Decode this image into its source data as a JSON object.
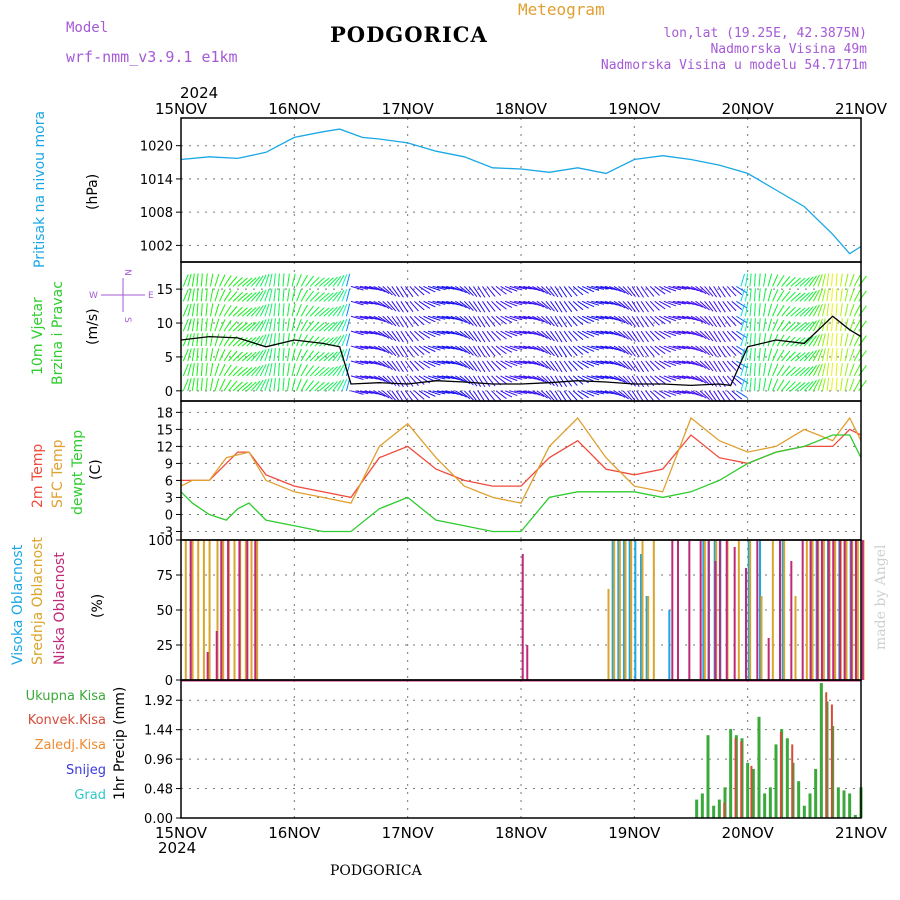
{
  "header": {
    "model_label": "Model",
    "model_name": "wrf-nmm_v3.9.1 e1km",
    "city": "PODGORICA",
    "meteogram": "Meteogram",
    "coords": "lon,lat (19.25E, 42.3875N)",
    "elevation": "Nadmorska Visina 49m",
    "model_elevation": "Nadmorska Visina u modelu 54.7171m"
  },
  "footer": {
    "city": "PODGORICA",
    "watermark": "made by Angel"
  },
  "time_axis": {
    "year": "2024",
    "ticks": [
      "15NOV",
      "16NOV",
      "17NOV",
      "18NOV",
      "19NOV",
      "20NOV",
      "21NOV"
    ]
  },
  "colors": {
    "pressure": "#1aa7e6",
    "wind_speed": "#000000",
    "t2m": "#ef4b3c",
    "tsfc": "#e0a030",
    "dewpoint": "#2fcc2f",
    "high_cloud": "#1aa7e6",
    "mid_cloud": "#d9a52a",
    "low_cloud": "#c0287a",
    "precip_total": "#3aa83a",
    "precip_conv": "#d64a3a",
    "precip_frozen": "#f08a30",
    "snow": "#3a3ae0",
    "graupel": "#2ec8c8",
    "label_purple": "#a55ad6",
    "axis": "#000000"
  },
  "panels": {
    "pressure": {
      "label_line1": "Pritisak na nivou mora",
      "unit": "(hPa)"
    },
    "wind": {
      "label_line1": "10m Vjetar",
      "label_line2": "Brzina i Pravac",
      "unit": "(m/s)",
      "compass": {
        "north": "N",
        "south": "S",
        "east": "E",
        "west": "W"
      }
    },
    "temp": {
      "label_t2m": "2m Temp",
      "label_tsfc": "SFC Temp",
      "label_dew": "dewpt Temp",
      "unit": "(C)"
    },
    "cloud": {
      "label_high": "Visoka Oblacnost",
      "label_mid": "Srednja Oblacnost",
      "label_low": "Niska Oblacnost",
      "unit": "(%)"
    },
    "precip": {
      "legend": [
        "Ukupna Kisa",
        "Konvek.Kisa",
        "Zaledj.Kisa",
        "Snijeg",
        "Grad"
      ],
      "unit": "1hr Precip (mm)"
    }
  },
  "chart_data": [
    {
      "type": "line",
      "title": "Pritisak na nivou mora",
      "ylabel": "(hPa)",
      "x_range_days": [
        0,
        6
      ],
      "ylim": [
        999,
        1025
      ],
      "yticks": [
        1002,
        1008,
        1014,
        1020
      ],
      "x": [
        0,
        0.25,
        0.5,
        0.75,
        1,
        1.25,
        1.4,
        1.6,
        1.75,
        2,
        2.25,
        2.5,
        2.75,
        3,
        3.25,
        3.5,
        3.75,
        4,
        4.25,
        4.5,
        4.75,
        5,
        5.25,
        5.5,
        5.75,
        5.9,
        6
      ],
      "values": [
        1017.5,
        1018.0,
        1017.7,
        1018.8,
        1021.5,
        1022.5,
        1023.0,
        1021.5,
        1021.2,
        1020.5,
        1019.0,
        1018.0,
        1016.0,
        1015.8,
        1015.2,
        1016.0,
        1015.0,
        1017.5,
        1018.2,
        1017.5,
        1016.5,
        1015.0,
        1012.0,
        1009.0,
        1004.0,
        1000.5,
        1001.8
      ]
    },
    {
      "type": "line",
      "title": "10m Vjetar Brzina i Pravac",
      "ylabel": "(m/s)",
      "x_range_days": [
        0,
        6
      ],
      "ylim": [
        -1.5,
        19
      ],
      "yticks": [
        0,
        5,
        10,
        15
      ],
      "x": [
        0,
        0.25,
        0.5,
        0.75,
        1,
        1.25,
        1.4,
        1.5,
        1.75,
        2,
        2.25,
        2.5,
        2.75,
        3,
        3.25,
        3.5,
        3.75,
        4,
        4.25,
        4.5,
        4.75,
        4.85,
        5,
        5.25,
        5.5,
        5.75,
        5.9,
        6
      ],
      "values": [
        7.5,
        8.0,
        7.8,
        6.5,
        7.5,
        7.0,
        6.5,
        1.0,
        1.2,
        1.0,
        1.5,
        1.3,
        1.0,
        1.0,
        1.2,
        1.5,
        1.3,
        1.0,
        1.0,
        0.8,
        1.0,
        0.8,
        6.5,
        7.5,
        7.0,
        11.0,
        9.0,
        8.0
      ]
    },
    {
      "type": "line",
      "title": "2m Temp / SFC Temp / dewpt Temp",
      "ylabel": "(C)",
      "x_range_days": [
        0,
        6
      ],
      "ylim": [
        -4.5,
        20
      ],
      "yticks": [
        -3,
        0,
        3,
        6,
        9,
        12,
        15,
        18
      ],
      "x": [
        0,
        0.1,
        0.25,
        0.4,
        0.5,
        0.6,
        0.75,
        1,
        1.25,
        1.5,
        1.75,
        2,
        2.25,
        2.5,
        2.75,
        3,
        3.25,
        3.5,
        3.75,
        4,
        4.25,
        4.5,
        4.75,
        5,
        5.25,
        5.5,
        5.75,
        5.9,
        6
      ],
      "series": [
        {
          "name": "2m Temp",
          "values": [
            6,
            6,
            6,
            9,
            11,
            11,
            7,
            5,
            4,
            3,
            10,
            12,
            8,
            6,
            5,
            5,
            10,
            13,
            8,
            7,
            8,
            14,
            10,
            9,
            11,
            12,
            12,
            15,
            14
          ]
        },
        {
          "name": "SFC Temp",
          "values": [
            5,
            6,
            6,
            10,
            10.5,
            11,
            6,
            4,
            3,
            2,
            12,
            16,
            10,
            5,
            3,
            2,
            12,
            17,
            10,
            5,
            4,
            17,
            13,
            11,
            12,
            15,
            13,
            17,
            13
          ]
        },
        {
          "name": "dewpt Temp",
          "values": [
            4,
            2,
            0,
            -1,
            1,
            2,
            -1,
            -2,
            -3,
            -3,
            1,
            3,
            -1,
            -2,
            -3,
            -3,
            3,
            4,
            4,
            4,
            3,
            4,
            6,
            9,
            11,
            12,
            14,
            14,
            10
          ]
        }
      ]
    },
    {
      "type": "bar",
      "title": "Oblacnost",
      "ylabel": "(%)",
      "x_range_days": [
        0,
        6
      ],
      "ylim": [
        0,
        100
      ],
      "yticks": [
        0,
        25,
        50,
        75,
        100
      ],
      "series": [
        {
          "name": "Visoka Oblacnost",
          "x": [
            3.8,
            3.85,
            3.9,
            3.95,
            4.0,
            4.05,
            4.1,
            4.3,
            4.6,
            4.65,
            4.7,
            4.75,
            5.0,
            5.1,
            5.3,
            5.6,
            5.7,
            5.8,
            5.85,
            5.9,
            5.95
          ],
          "values": [
            100,
            100,
            100,
            100,
            100,
            90,
            60,
            50,
            100,
            100,
            100,
            100,
            100,
            100,
            100,
            100,
            100,
            100,
            100,
            100,
            100
          ]
        },
        {
          "name": "Srednja Oblacnost",
          "x": [
            0.02,
            0.08,
            0.13,
            0.18,
            0.23,
            0.3,
            0.35,
            0.4,
            0.45,
            0.5,
            0.55,
            0.6,
            0.65,
            3.75,
            3.8,
            3.85,
            3.9,
            3.95,
            4.05,
            4.1,
            4.15,
            4.6,
            4.7,
            4.8,
            4.9,
            5.0,
            5.1,
            5.2,
            5.3,
            5.4,
            5.5,
            5.55,
            5.6,
            5.65,
            5.7,
            5.75,
            5.8,
            5.85,
            5.9,
            5.95,
            6.0
          ],
          "values": [
            100,
            100,
            100,
            100,
            100,
            100,
            100,
            100,
            100,
            100,
            100,
            100,
            100,
            65,
            100,
            100,
            100,
            100,
            100,
            60,
            100,
            100,
            100,
            100,
            100,
            100,
            60,
            100,
            100,
            60,
            100,
            100,
            100,
            100,
            100,
            100,
            100,
            100,
            100,
            100,
            100
          ]
        },
        {
          "name": "Niska Oblacnost",
          "x": [
            0.05,
            0.2,
            0.28,
            0.32,
            0.38,
            0.48,
            0.55,
            0.62,
            2.98,
            3.02,
            4.3,
            4.35,
            4.45,
            4.55,
            4.62,
            4.68,
            4.72,
            4.78,
            4.85,
            4.95,
            5.05,
            5.15,
            5.25,
            5.35,
            5.45,
            5.52,
            5.58,
            5.62,
            5.68,
            5.72,
            5.78,
            5.82,
            5.88,
            5.92,
            5.98
          ],
          "values": [
            100,
            20,
            35,
            100,
            100,
            100,
            100,
            100,
            90,
            25,
            100,
            100,
            100,
            100,
            100,
            85,
            100,
            100,
            95,
            80,
            100,
            30,
            100,
            85,
            100,
            100,
            100,
            100,
            100,
            100,
            100,
            100,
            100,
            100,
            100
          ]
        }
      ]
    },
    {
      "type": "bar",
      "title": "1hr Precip",
      "ylabel": "1hr Precip (mm)",
      "x_range_days": [
        0,
        6
      ],
      "ylim": [
        0,
        2.25
      ],
      "yticks": [
        0,
        0.48,
        0.96,
        1.44,
        1.92
      ],
      "series": [
        {
          "name": "Ukupna Kisa",
          "x": [
            4.55,
            4.6,
            4.65,
            4.7,
            4.75,
            4.8,
            4.85,
            4.9,
            4.95,
            5.0,
            5.05,
            5.1,
            5.15,
            5.2,
            5.25,
            5.3,
            5.35,
            5.4,
            5.45,
            5.5,
            5.55,
            5.6,
            5.65,
            5.7,
            5.75,
            5.8,
            5.85,
            5.9,
            5.95,
            6.0
          ],
          "values": [
            0.3,
            0.4,
            1.35,
            0.2,
            0.3,
            0.5,
            1.45,
            1.35,
            1.3,
            0.9,
            0.8,
            1.65,
            0.4,
            0.5,
            1.2,
            1.45,
            1.3,
            0.9,
            0.6,
            0.2,
            0.4,
            0.8,
            2.2,
            1.9,
            1.5,
            0.5,
            0.45,
            0.4,
            0.05,
            0.5
          ]
        },
        {
          "name": "Konvek.Kisa",
          "x": [
            4.78,
            4.88,
            4.93,
            5.02,
            5.28,
            5.38,
            5.68,
            5.73
          ],
          "values": [
            0.25,
            1.3,
            1.25,
            0.85,
            1.4,
            1.2,
            2.05,
            1.85
          ]
        }
      ]
    }
  ]
}
